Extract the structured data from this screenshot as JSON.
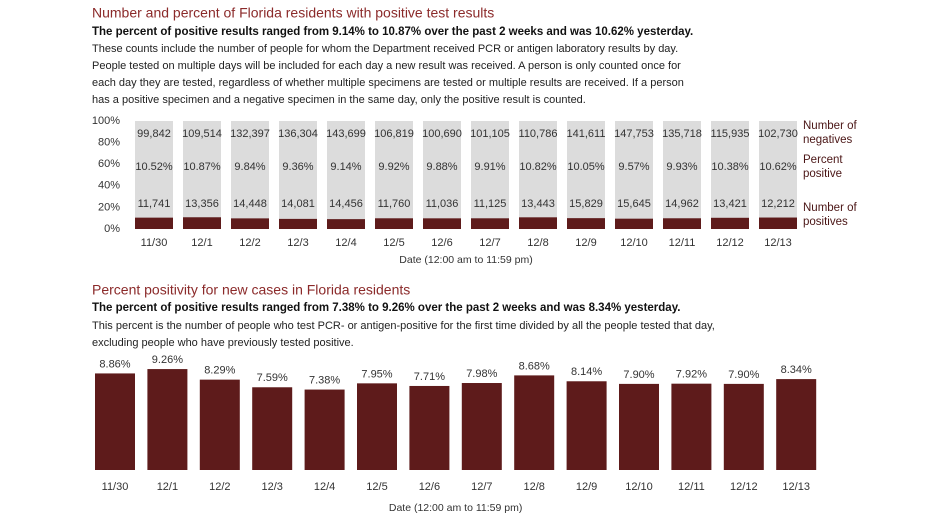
{
  "chart_data": [
    {
      "type": "bar",
      "title": "Number and percent of Florida residents with positive test results",
      "subtitle": "The percent of positive results ranged from 9.14% to 10.87% over the past 2 weeks and was 10.62% yesterday.",
      "note": [
        "These counts include the number of people for whom the Department received PCR or antigen laboratory results by day.",
        "People tested on multiple days will be included for each day a new result was received. A person is only counted once for",
        "each day they are tested, regardless of whether multiple specimens are tested or multiple results are received. If a person",
        "has a positive specimen and a negative specimen in the same day, only the positive result is counted."
      ],
      "categories": [
        "11/30",
        "12/1",
        "12/2",
        "12/3",
        "12/4",
        "12/5",
        "12/6",
        "12/7",
        "12/8",
        "12/9",
        "12/10",
        "12/11",
        "12/12",
        "12/13"
      ],
      "series": [
        {
          "name": "Percent positive",
          "color": "#5e1b1b",
          "values": [
            10.52,
            10.87,
            9.84,
            9.36,
            9.14,
            9.92,
            9.88,
            9.91,
            10.82,
            10.05,
            9.57,
            9.93,
            10.38,
            10.62
          ],
          "value_labels": [
            "10.52%",
            "10.87%",
            "9.84%",
            "9.36%",
            "9.14%",
            "9.92%",
            "9.88%",
            "9.91%",
            "10.82%",
            "10.05%",
            "9.57%",
            "9.93%",
            "10.38%",
            "10.62%"
          ]
        }
      ],
      "negatives": {
        "name": "Number of negatives",
        "labels": [
          "99,842",
          "109,514",
          "132,397",
          "136,304",
          "143,699",
          "106,819",
          "100,690",
          "101,105",
          "110,786",
          "141,611",
          "147,753",
          "135,718",
          "115,935",
          "102,730"
        ]
      },
      "positives": {
        "name": "Number of positives",
        "labels": [
          "11,741",
          "13,356",
          "14,448",
          "14,081",
          "14,456",
          "11,760",
          "11,036",
          "11,125",
          "13,443",
          "15,829",
          "15,645",
          "14,962",
          "13,421",
          "12,212"
        ]
      },
      "track_color": "#dcdcdc",
      "ylim": [
        0,
        100
      ],
      "yticks": [
        {
          "value": 0,
          "label": "0%"
        },
        {
          "value": 20,
          "label": "20%"
        },
        {
          "value": 40,
          "label": "40%"
        },
        {
          "value": 60,
          "label": "60%"
        },
        {
          "value": 80,
          "label": "80%"
        },
        {
          "value": 100,
          "label": "100%"
        }
      ],
      "xlabel": "Date (12:00 am to 11:59 pm)"
    },
    {
      "type": "bar",
      "title": "Percent positivity for new cases in Florida residents",
      "subtitle": "The percent of positive results ranged from 7.38% to 9.26% over the past 2 weeks and was 8.34% yesterday.",
      "note": [
        "This percent is the number of people who test PCR- or antigen-positive for the first time divided by all the people tested that day,",
        "excluding people who have previously tested positive."
      ],
      "categories": [
        "11/30",
        "12/1",
        "12/2",
        "12/3",
        "12/4",
        "12/5",
        "12/6",
        "12/7",
        "12/8",
        "12/9",
        "12/10",
        "12/11",
        "12/12",
        "12/13"
      ],
      "values": [
        8.86,
        9.26,
        8.29,
        7.59,
        7.38,
        7.95,
        7.71,
        7.98,
        8.68,
        8.14,
        7.9,
        7.92,
        7.9,
        8.34
      ],
      "value_labels": [
        "8.86%",
        "9.26%",
        "8.29%",
        "7.59%",
        "7.38%",
        "7.95%",
        "7.71%",
        "7.98%",
        "8.68%",
        "8.14%",
        "7.90%",
        "7.92%",
        "7.90%",
        "8.34%"
      ],
      "color": "#5e1b1b",
      "ylim": [
        0,
        10
      ],
      "xlabel": "Date (12:00 am to 11:59 pm)"
    }
  ]
}
